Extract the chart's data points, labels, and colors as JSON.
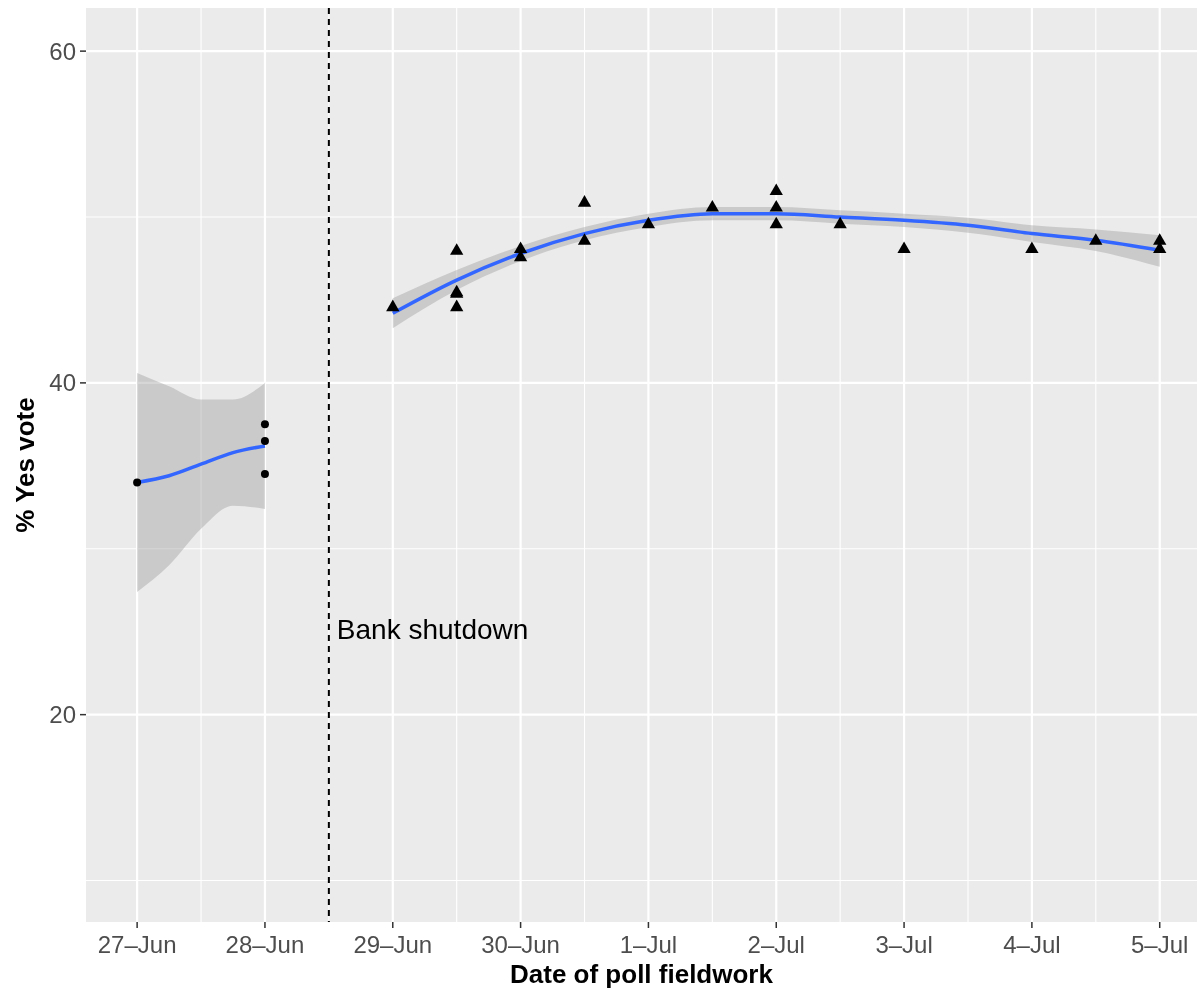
{
  "chart_data": {
    "type": "scatter",
    "xlabel": "Date of poll fieldwork",
    "ylabel": "% Yes vote",
    "xlim": [
      "--06-26T14:24",
      "--07-05T07:00"
    ],
    "ylim": [
      7.5,
      62.6
    ],
    "xticks": [
      {
        "value": "--06-27",
        "label": "27–Jun"
      },
      {
        "value": "--06-27T12:00",
        "label": null
      },
      {
        "value": "--06-28",
        "label": "28–Jun"
      },
      {
        "value": "--06-28T12:00",
        "label": null
      },
      {
        "value": "--06-29",
        "label": "29–Jun"
      },
      {
        "value": "--06-29T12:00",
        "label": null
      },
      {
        "value": "--06-30",
        "label": "30–Jun"
      },
      {
        "value": "--06-30T12:00",
        "label": null
      },
      {
        "value": "--07-01",
        "label": "1–Jul"
      },
      {
        "value": "--07-01T12:00",
        "label": null
      },
      {
        "value": "--07-02",
        "label": "2–Jul"
      },
      {
        "value": "--07-02T12:00",
        "label": null
      },
      {
        "value": "--07-03",
        "label": "3–Jul"
      },
      {
        "value": "--07-03T12:00",
        "label": null
      },
      {
        "value": "--07-04",
        "label": "4–Jul"
      },
      {
        "value": "--07-04T12:00",
        "label": null
      },
      {
        "value": "--07-05",
        "label": "5–Jul"
      }
    ],
    "yticks": [
      {
        "value": 10,
        "label": null
      },
      20,
      {
        "value": 30,
        "label": null
      },
      40,
      {
        "value": 50,
        "label": null
      },
      60
    ],
    "grid": true,
    "ref_lines": [
      {
        "axis": "x",
        "value": "--06-28T12:00",
        "label": "Bank shutdown",
        "color": "#000000",
        "line_style": "dashed"
      }
    ],
    "series": [
      {
        "type": "line",
        "color": "#3366ff",
        "marker": "none",
        "line_style": "solid",
        "x": [
          "--06-27",
          "--06-27T06:00",
          "--06-27T12:00",
          "--06-27T18:00",
          "--06-28"
        ],
        "values": [
          34.0,
          34.4,
          35.1,
          35.8,
          36.2
        ],
        "lower": [
          27.4,
          29.0,
          31.2,
          32.6,
          32.4
        ],
        "upper": [
          40.6,
          39.8,
          39.0,
          39.0,
          40.0
        ]
      },
      {
        "type": "line",
        "color": "#3366ff",
        "marker": "none",
        "line_style": "solid",
        "x": [
          "--06-29",
          "--06-29T12:00",
          "--06-30",
          "--06-30T12:00",
          "--07-01",
          "--07-01T12:00",
          "--07-02",
          "--07-02T12:00",
          "--07-03",
          "--07-03T12:00",
          "--07-04",
          "--07-04T12:00",
          "--07-05"
        ],
        "values": [
          44.2,
          46.2,
          47.8,
          49.0,
          49.8,
          50.2,
          50.2,
          50.0,
          49.8,
          49.5,
          49.0,
          48.6,
          48.0
        ],
        "lower": [
          43.3,
          45.6,
          47.35,
          48.6,
          49.4,
          49.8,
          49.8,
          49.6,
          49.4,
          49.05,
          48.5,
          47.95,
          47.0
        ],
        "upper": [
          45.1,
          46.8,
          48.25,
          49.4,
          50.2,
          50.6,
          50.6,
          50.4,
          50.2,
          49.95,
          49.5,
          49.25,
          48.9
        ]
      },
      {
        "color": "#000000",
        "marker": "circle",
        "x": [
          "--06-27",
          "--06-28",
          "--06-28",
          "--06-28"
        ],
        "values": [
          34.0,
          37.5,
          36.5,
          34.5
        ]
      },
      {
        "color": "#000000",
        "marker": "triangle",
        "x": [
          "--06-29",
          "--06-29T12:00",
          "--06-29T12:00",
          "--06-29T12:00",
          "--06-29T12:00",
          "--06-30",
          "--06-30",
          "--06-30T12:00",
          "--06-30T12:00",
          "--07-01",
          "--07-01T12:00",
          "--07-02",
          "--07-02",
          "--07-02",
          "--07-02T12:00",
          "--07-03",
          "--07-04",
          "--07-04T12:00",
          "--07-05",
          "--07-05"
        ],
        "values": [
          44.6,
          48.0,
          45.5,
          45.4,
          44.6,
          48.1,
          47.6,
          50.9,
          48.6,
          49.6,
          50.6,
          51.6,
          50.6,
          49.6,
          49.6,
          48.1,
          48.1,
          48.6,
          48.6,
          48.1
        ]
      }
    ]
  }
}
